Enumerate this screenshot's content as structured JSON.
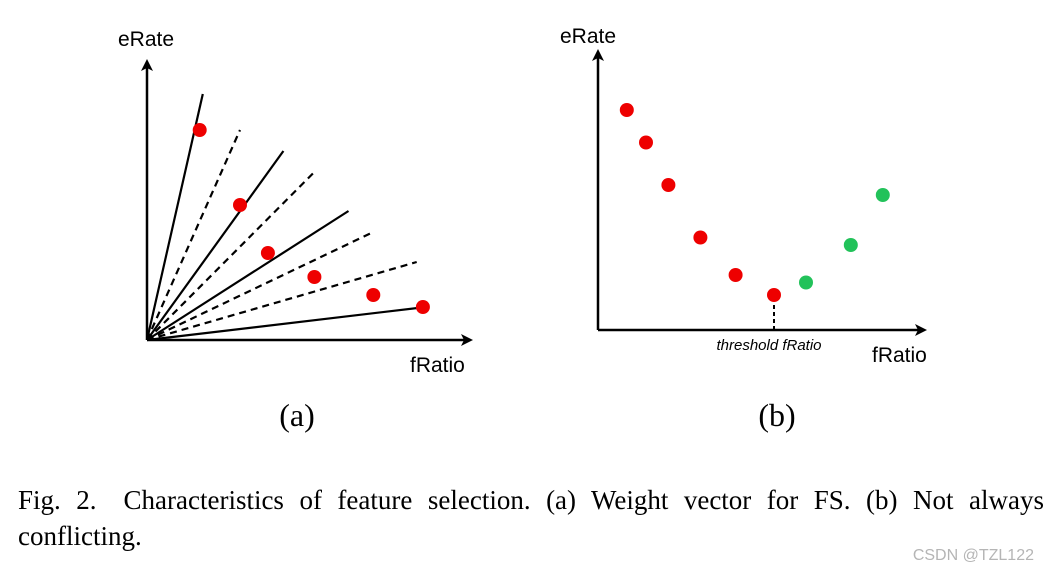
{
  "chart_data": [
    {
      "type": "scatter",
      "panel_label": "(a)",
      "xlabel": "fRatio",
      "ylabel": "eRate",
      "xlim": [
        0,
        10
      ],
      "ylim": [
        0,
        10
      ],
      "ray_endpoints": [
        {
          "x": 1.8,
          "y": 8.2,
          "style": "solid"
        },
        {
          "x": 3.0,
          "y": 7.0,
          "style": "dashed"
        },
        {
          "x": 4.4,
          "y": 6.3,
          "style": "solid"
        },
        {
          "x": 5.4,
          "y": 5.6,
          "style": "dashed"
        },
        {
          "x": 6.5,
          "y": 4.3,
          "style": "solid"
        },
        {
          "x": 7.3,
          "y": 3.6,
          "style": "dashed"
        },
        {
          "x": 8.7,
          "y": 2.6,
          "style": "dashed"
        },
        {
          "x": 9.0,
          "y": 1.1,
          "style": "solid"
        }
      ],
      "points": [
        {
          "x": 1.7,
          "y": 7.0,
          "color": "#ee0000"
        },
        {
          "x": 3.0,
          "y": 4.5,
          "color": "#ee0000"
        },
        {
          "x": 3.9,
          "y": 2.9,
          "color": "#ee0000"
        },
        {
          "x": 5.4,
          "y": 2.1,
          "color": "#ee0000"
        },
        {
          "x": 7.3,
          "y": 1.5,
          "color": "#ee0000"
        },
        {
          "x": 8.9,
          "y": 1.1,
          "color": "#ee0000"
        }
      ]
    },
    {
      "type": "scatter",
      "panel_label": "(b)",
      "xlabel": "fRatio",
      "ylabel": "eRate",
      "annotation": "threshold fRatio",
      "threshold_x": 5.5,
      "xlim": [
        0,
        10
      ],
      "ylim": [
        0,
        10
      ],
      "points": [
        {
          "x": 0.9,
          "y": 8.8,
          "color": "#ee0000"
        },
        {
          "x": 1.5,
          "y": 7.5,
          "color": "#ee0000"
        },
        {
          "x": 2.2,
          "y": 5.8,
          "color": "#ee0000"
        },
        {
          "x": 3.2,
          "y": 3.7,
          "color": "#ee0000"
        },
        {
          "x": 4.3,
          "y": 2.2,
          "color": "#ee0000"
        },
        {
          "x": 5.5,
          "y": 1.4,
          "color": "#ee0000"
        },
        {
          "x": 6.5,
          "y": 1.9,
          "color": "#22c25a"
        },
        {
          "x": 7.9,
          "y": 3.4,
          "color": "#22c25a"
        },
        {
          "x": 8.9,
          "y": 5.4,
          "color": "#22c25a"
        }
      ]
    }
  ],
  "caption": "Fig. 2. Characteristics of feature selection. (a) Weight vector for FS. (b) Not always conflicting.",
  "watermark": "CSDN @TZL122"
}
